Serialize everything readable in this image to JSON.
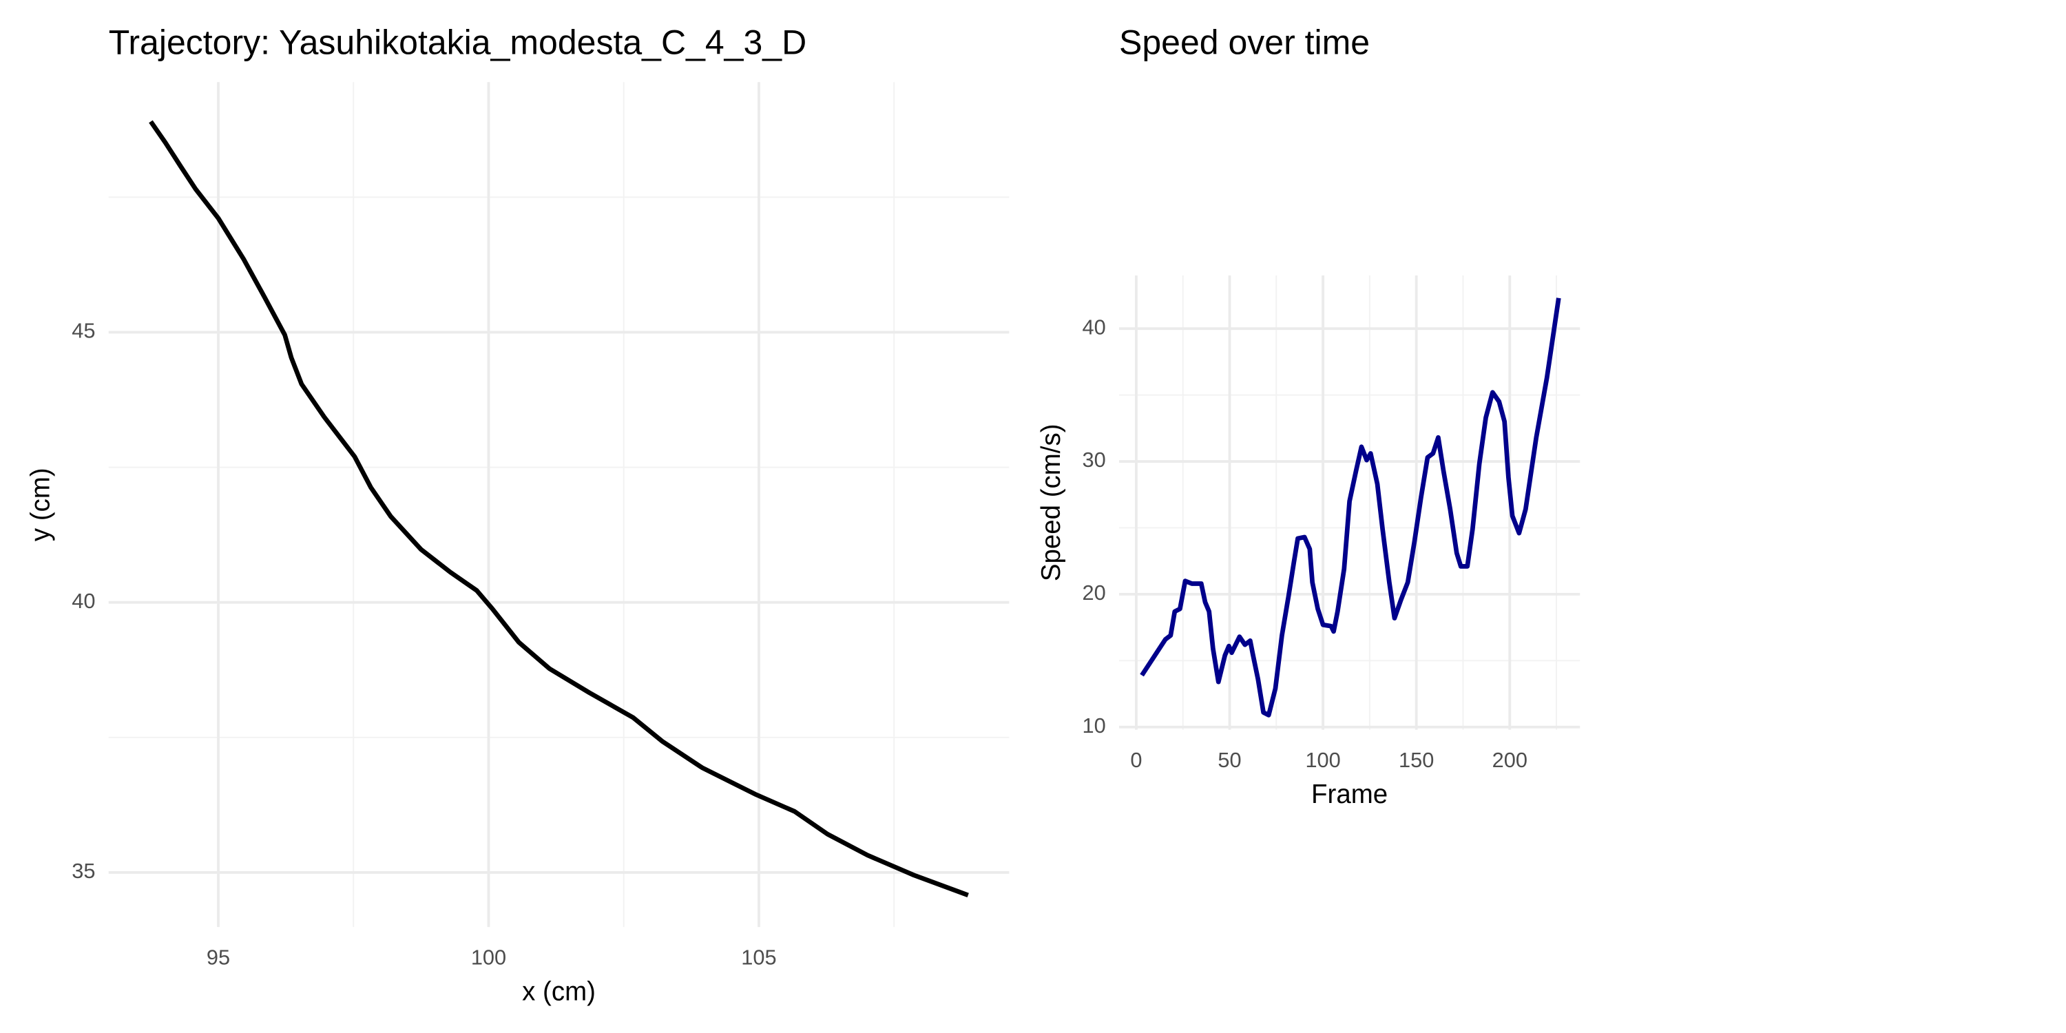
{
  "chart_data": [
    {
      "type": "line",
      "title": "Trajectory: Yasuhikotakia_modesta_C_4_3_D",
      "x_label": "x (cm)",
      "y_label": "y (cm)",
      "x": [
        93.75,
        94.02,
        94.31,
        94.58,
        95.0,
        95.47,
        95.86,
        96.23,
        96.35,
        96.54,
        96.96,
        97.52,
        97.82,
        98.19,
        98.75,
        99.29,
        99.78,
        100.07,
        100.56,
        101.13,
        101.86,
        102.67,
        103.21,
        103.95,
        104.93,
        105.66,
        106.27,
        107.01,
        107.87,
        108.87
      ],
      "series": [
        {
          "name": "trajectory",
          "color": "#000000",
          "values": [
            48.9,
            48.51,
            48.06,
            47.65,
            47.11,
            46.35,
            45.64,
            44.95,
            44.53,
            44.04,
            43.43,
            42.7,
            42.13,
            41.59,
            40.98,
            40.56,
            40.22,
            39.88,
            39.26,
            38.77,
            38.33,
            37.87,
            37.43,
            36.94,
            36.45,
            36.13,
            35.71,
            35.32,
            34.95,
            34.58
          ]
        }
      ],
      "xlim": [
        92.97,
        109.63
      ],
      "ylim": [
        33.99,
        49.63
      ],
      "xticks": [
        95,
        100,
        105
      ],
      "yticks": [
        35,
        40,
        45
      ],
      "x_minor_grid": [
        97.5,
        102.5,
        107.5
      ],
      "y_minor_grid": [
        37.5,
        42.5,
        47.5
      ],
      "grid": true
    },
    {
      "type": "line",
      "title": "Speed over time",
      "x_label": "Frame",
      "y_label": "Speed (cm/s)",
      "x": [
        3,
        15.6,
        18.4,
        20.6,
        23.4,
        26.2,
        29.8,
        34.8,
        36.9,
        39.0,
        41.1,
        44.0,
        47.5,
        49.6,
        51.1,
        55.3,
        58.2,
        61.0,
        62.4,
        65.2,
        68.1,
        70.9,
        74.5,
        78.0,
        81.6,
        84.4,
        86.5,
        90.1,
        92.9,
        94.3,
        97.2,
        100.0,
        104.3,
        105.7,
        107.8,
        111.3,
        114.2,
        117.7,
        120.6,
        123.4,
        125.5,
        129.1,
        131.9,
        135.5,
        138.3,
        141.8,
        145.4,
        148.9,
        152.5,
        156.0,
        158.9,
        161.7,
        164.5,
        168.1,
        171.6,
        173.8,
        177.3,
        180.1,
        183.7,
        187.2,
        190.8,
        194.3,
        197.2,
        199.3,
        201.4,
        205.0,
        208.5,
        214.2,
        219.9,
        226.2
      ],
      "series": [
        {
          "name": "speed",
          "color": "#00008b",
          "values": [
            13.9,
            16.6,
            16.9,
            18.7,
            18.9,
            21.0,
            20.8,
            20.8,
            19.4,
            18.7,
            15.9,
            13.4,
            15.4,
            16.1,
            15.6,
            16.8,
            16.2,
            16.5,
            15.5,
            13.6,
            11.1,
            10.9,
            12.9,
            16.9,
            19.9,
            22.4,
            24.2,
            24.3,
            23.4,
            20.9,
            18.9,
            17.7,
            17.6,
            17.2,
            18.7,
            21.9,
            27.0,
            29.3,
            31.1,
            30.1,
            30.6,
            28.3,
            24.9,
            20.9,
            18.2,
            19.6,
            20.9,
            23.9,
            27.3,
            30.3,
            30.6,
            31.8,
            29.3,
            26.4,
            23.1,
            22.1,
            22.1,
            24.9,
            29.8,
            33.3,
            35.2,
            34.5,
            33.0,
            28.8,
            25.9,
            24.6,
            26.4,
            31.8,
            36.3,
            42.3
          ]
        }
      ],
      "xlim": [
        -9.2,
        237.6
      ],
      "ylim": [
        9.8,
        44
      ],
      "xticks": [
        0,
        50,
        100,
        150,
        200
      ],
      "yticks": [
        10,
        20,
        30,
        40
      ],
      "x_minor_grid": [
        25,
        75,
        125,
        175,
        225
      ],
      "y_minor_grid": [
        15,
        25,
        35
      ],
      "grid": true
    }
  ]
}
